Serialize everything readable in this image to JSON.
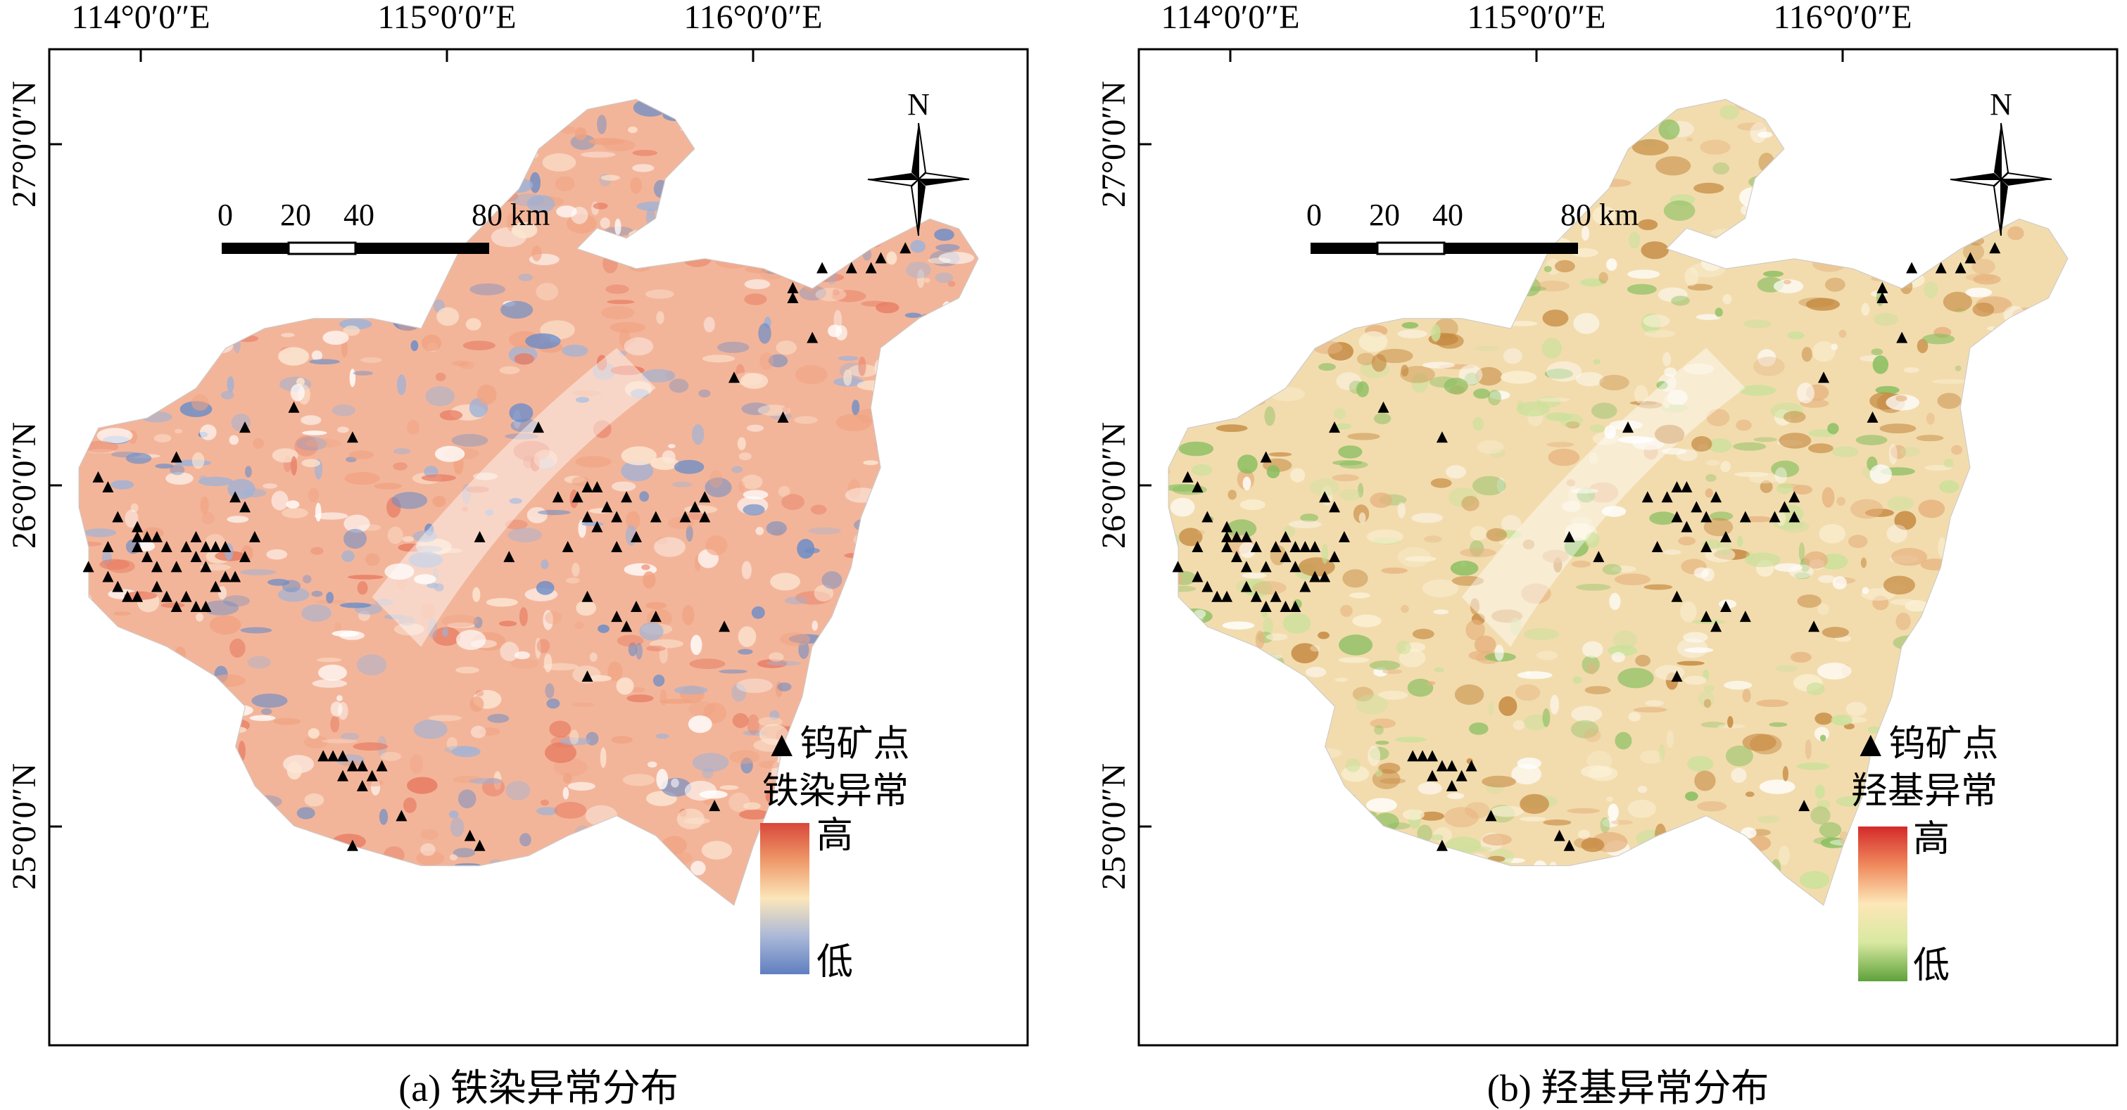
{
  "panels": [
    {
      "id": "a",
      "caption": "(a) 铁染异常分布",
      "legend": {
        "point_label": "▲钨矿点",
        "ramp_title": "铁染异常",
        "high": "高",
        "low": "低",
        "ramp_colors": [
          "#d8473a",
          "#ef9a6a",
          "#fbe6b9",
          "#aab8d8",
          "#5f7fbf"
        ]
      },
      "base_color": "#f3b59a",
      "patch_colors": [
        "#e77b61",
        "#f0a382",
        "#fce7d3",
        "#ffffff",
        "#9db2d8",
        "#6c8dc7"
      ]
    },
    {
      "id": "b",
      "caption": "(b) 羟基异常分布",
      "legend": {
        "point_label": "▲钨矿点",
        "ramp_title": "羟基异常",
        "high": "高",
        "low": "低",
        "ramp_colors": [
          "#d42a2a",
          "#f08a5d",
          "#fde7b8",
          "#d8e8a0",
          "#5ea23a"
        ]
      },
      "base_color": "#f2dcae",
      "patch_colors": [
        "#c5883f",
        "#e6b27e",
        "#fbf1d6",
        "#ffffff",
        "#c9e19a",
        "#86be5e"
      ]
    }
  ],
  "graticule": {
    "lon_labels": [
      "114°0′0″E",
      "115°0′0″E",
      "116°0′0″E"
    ],
    "lat_labels": [
      "27°0′0″N",
      "26°0′0″N",
      "25°0′0″N"
    ]
  },
  "north_arrow": {
    "label": "N"
  },
  "scale_bar": {
    "labels": [
      "0",
      "20",
      "40",
      "80 km"
    ]
  },
  "mine_points": [
    [
      0.79,
      0.22
    ],
    [
      0.82,
      0.22
    ],
    [
      0.85,
      0.21
    ],
    [
      0.84,
      0.22
    ],
    [
      0.875,
      0.2
    ],
    [
      0.76,
      0.24
    ],
    [
      0.76,
      0.25
    ],
    [
      0.78,
      0.29
    ],
    [
      0.7,
      0.33
    ],
    [
      0.75,
      0.37
    ],
    [
      0.25,
      0.36
    ],
    [
      0.2,
      0.38
    ],
    [
      0.31,
      0.39
    ],
    [
      0.5,
      0.38
    ],
    [
      0.05,
      0.43
    ],
    [
      0.06,
      0.44
    ],
    [
      0.13,
      0.41
    ],
    [
      0.19,
      0.45
    ],
    [
      0.2,
      0.46
    ],
    [
      0.07,
      0.47
    ],
    [
      0.09,
      0.48
    ],
    [
      0.09,
      0.49
    ],
    [
      0.1,
      0.49
    ],
    [
      0.11,
      0.49
    ],
    [
      0.09,
      0.5
    ],
    [
      0.1,
      0.51
    ],
    [
      0.12,
      0.5
    ],
    [
      0.14,
      0.5
    ],
    [
      0.15,
      0.49
    ],
    [
      0.16,
      0.5
    ],
    [
      0.17,
      0.5
    ],
    [
      0.18,
      0.5
    ],
    [
      0.15,
      0.51
    ],
    [
      0.16,
      0.52
    ],
    [
      0.13,
      0.52
    ],
    [
      0.11,
      0.52
    ],
    [
      0.06,
      0.53
    ],
    [
      0.07,
      0.54
    ],
    [
      0.08,
      0.55
    ],
    [
      0.09,
      0.55
    ],
    [
      0.11,
      0.54
    ],
    [
      0.12,
      0.55
    ],
    [
      0.13,
      0.56
    ],
    [
      0.14,
      0.55
    ],
    [
      0.15,
      0.56
    ],
    [
      0.16,
      0.56
    ],
    [
      0.17,
      0.54
    ],
    [
      0.18,
      0.53
    ],
    [
      0.19,
      0.53
    ],
    [
      0.2,
      0.51
    ],
    [
      0.21,
      0.49
    ],
    [
      0.06,
      0.5
    ],
    [
      0.04,
      0.52
    ],
    [
      0.52,
      0.45
    ],
    [
      0.54,
      0.45
    ],
    [
      0.55,
      0.44
    ],
    [
      0.56,
      0.44
    ],
    [
      0.57,
      0.46
    ],
    [
      0.58,
      0.47
    ],
    [
      0.59,
      0.45
    ],
    [
      0.55,
      0.47
    ],
    [
      0.56,
      0.48
    ],
    [
      0.6,
      0.49
    ],
    [
      0.58,
      0.5
    ],
    [
      0.62,
      0.47
    ],
    [
      0.65,
      0.47
    ],
    [
      0.66,
      0.46
    ],
    [
      0.67,
      0.45
    ],
    [
      0.67,
      0.47
    ],
    [
      0.53,
      0.5
    ],
    [
      0.47,
      0.51
    ],
    [
      0.44,
      0.49
    ],
    [
      0.55,
      0.55
    ],
    [
      0.58,
      0.57
    ],
    [
      0.6,
      0.56
    ],
    [
      0.62,
      0.57
    ],
    [
      0.69,
      0.58
    ],
    [
      0.55,
      0.63
    ],
    [
      0.59,
      0.58
    ],
    [
      0.28,
      0.71
    ],
    [
      0.29,
      0.71
    ],
    [
      0.3,
      0.71
    ],
    [
      0.31,
      0.72
    ],
    [
      0.3,
      0.73
    ],
    [
      0.32,
      0.74
    ],
    [
      0.33,
      0.73
    ],
    [
      0.34,
      0.72
    ],
    [
      0.32,
      0.72
    ],
    [
      0.36,
      0.77
    ],
    [
      0.31,
      0.8
    ],
    [
      0.43,
      0.79
    ],
    [
      0.68,
      0.76
    ],
    [
      0.75,
      0.81
    ],
    [
      0.44,
      0.8
    ]
  ]
}
